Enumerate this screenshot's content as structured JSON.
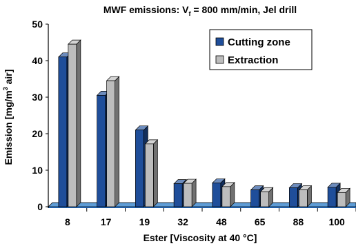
{
  "chart_data": {
    "type": "bar",
    "title": "MWF emissions: V",
    "title_sub": "f",
    "title_rest": " = 800 mm/min, Jel drill",
    "xlabel": "Ester [Viscosity at 40 °C]",
    "ylabel_pre": "Emission [mg/m",
    "ylabel_sup": "3",
    "ylabel_post": " air]",
    "categories": [
      "8",
      "17",
      "19",
      "32",
      "48",
      "65",
      "88",
      "100"
    ],
    "ylim": [
      0,
      50
    ],
    "yticks": [
      "0",
      "10",
      "20",
      "30",
      "40",
      "50"
    ],
    "grid": false,
    "legend_position": "top-right",
    "series": [
      {
        "name": "Cutting zone",
        "values": [
          41,
          30.5,
          21,
          6.3,
          6.5,
          4.6,
          5.2,
          5.3
        ],
        "color": "#1f4e9a"
      },
      {
        "name": "Extraction",
        "values": [
          44.5,
          34.5,
          17.2,
          6.4,
          5.5,
          4.1,
          4.6,
          3.9
        ],
        "color": "#bdbdbd"
      }
    ]
  }
}
